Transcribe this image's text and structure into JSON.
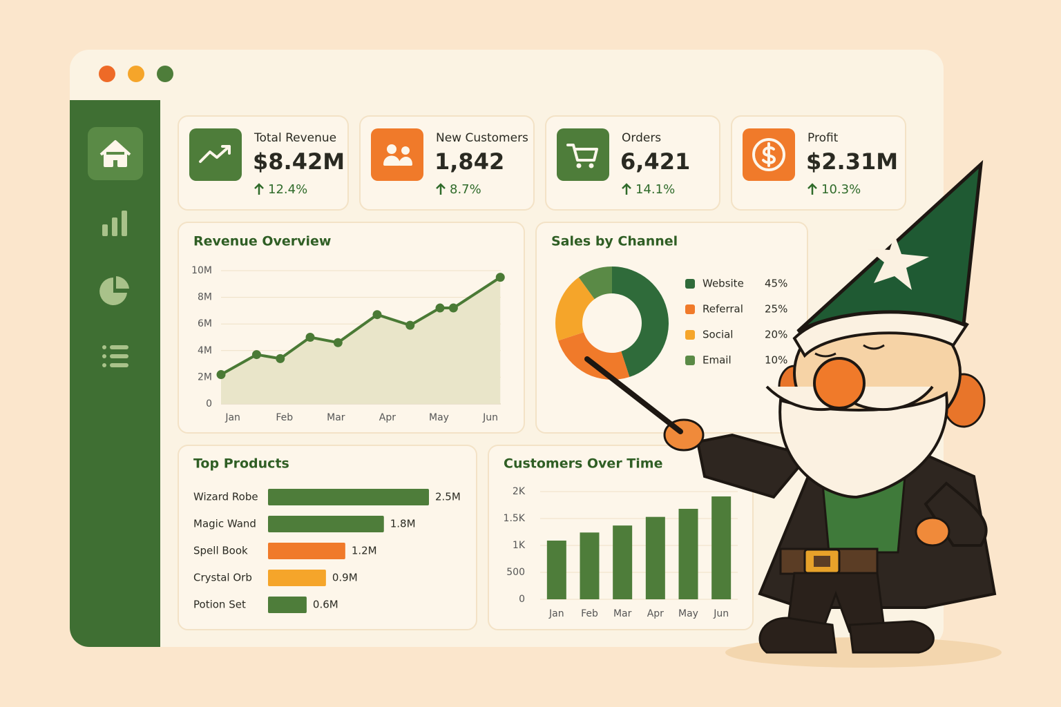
{
  "kpis": [
    {
      "label": "Total Revenue",
      "value": "$8.42M",
      "change": "12.4%"
    },
    {
      "label": "New Customers",
      "value": "1,842",
      "change": "8.7%"
    },
    {
      "label": "Orders",
      "value": "6,421",
      "change": "14.1%"
    },
    {
      "label": "Profit",
      "value": "$2.31M",
      "change": "10.3%"
    }
  ],
  "chart_data": [
    {
      "type": "line",
      "title": "Revenue Overview",
      "x": [
        0.77,
        1.46,
        1.92,
        2.5,
        3.04,
        3.8,
        4.44,
        5.02,
        5.28,
        6.19
      ],
      "values": [
        2.2,
        3.7,
        3.4,
        5.0,
        4.6,
        6.7,
        5.9,
        7.2,
        7.2,
        9.5
      ],
      "color": "#4a7a35",
      "area_color": "#e9e5c9",
      "xlim": [
        0.77,
        6.2
      ],
      "xticks": [
        {
          "value": 1,
          "label": "Jan"
        },
        {
          "value": 2,
          "label": "Feb"
        },
        {
          "value": 3,
          "label": "Mar"
        },
        {
          "value": 4,
          "label": "Apr"
        },
        {
          "value": 5,
          "label": "May"
        },
        {
          "value": 6,
          "label": "Jun"
        }
      ],
      "ylim": [
        0,
        10
      ],
      "yticks": [
        0,
        {
          "value": 2,
          "label": "2M"
        },
        {
          "value": 4,
          "label": "4M"
        },
        {
          "value": 6,
          "label": "6M"
        },
        {
          "value": 8,
          "label": "8M"
        },
        {
          "value": 10,
          "label": "10M"
        }
      ],
      "grid": true
    },
    {
      "type": "donut",
      "title": "Sales by Channel",
      "categories": [
        "Website",
        "Referral",
        "Social",
        "Email"
      ],
      "values": [
        45,
        25,
        20,
        10
      ],
      "value_labels": [
        "45%",
        "25%",
        "20%",
        "10%"
      ],
      "colors": [
        "#2f6b3a",
        "#f07a2a",
        "#f5a52a",
        "#5a8a46"
      ]
    },
    {
      "type": "hbar",
      "title": "Top Products",
      "categories": [
        "Wizard Robe",
        "Magic Wand",
        "Spell Book",
        "Crystal Orb",
        "Potion Set"
      ],
      "values": [
        2.5,
        1.8,
        1.2,
        0.9,
        0.6
      ],
      "value_labels": [
        "2.5M",
        "1.8M",
        "1.2M",
        "0.9M",
        "0.6M"
      ],
      "colors": [
        "#4e7d3a",
        "#4e7d3a",
        "#f07a2a",
        "#f5a52a",
        "#4e7d3a"
      ]
    },
    {
      "type": "bar",
      "title": "Customers Over Time",
      "categories": [
        "Jan",
        "Feb",
        "Mar",
        "Apr",
        "May",
        "Jun"
      ],
      "values": [
        1090,
        1240,
        1370,
        1530,
        1680,
        1910
      ],
      "color": "#4e7d3a",
      "ylim": [
        0,
        2000
      ],
      "yticks": [
        0,
        500,
        {
          "value": 1000,
          "label": "1K"
        },
        {
          "value": 1500,
          "label": "1.5K"
        },
        {
          "value": 2000,
          "label": "2K"
        }
      ],
      "grid": true
    }
  ]
}
